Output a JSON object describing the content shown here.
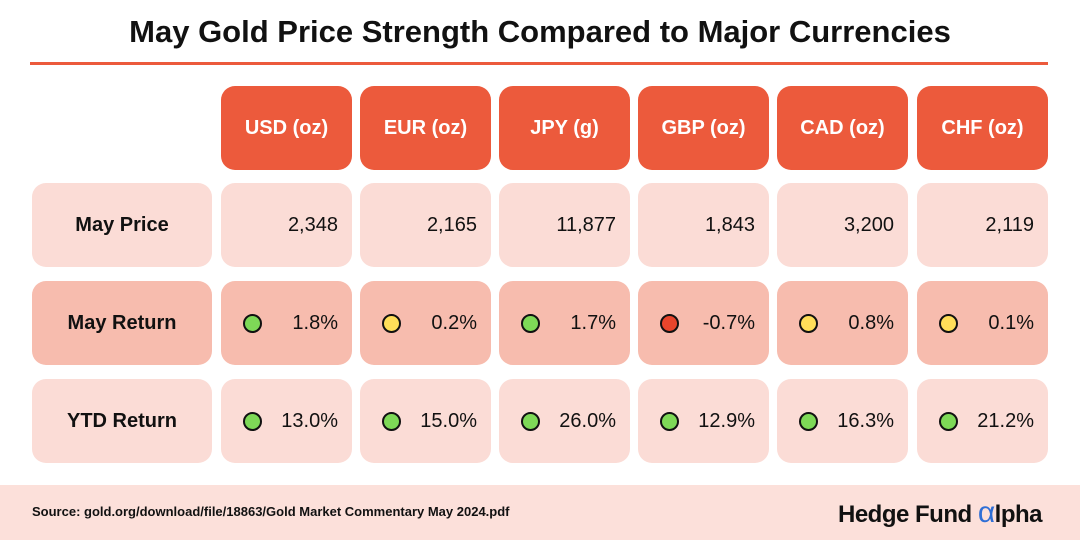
{
  "title": "May Gold Price Strength Compared to Major Currencies",
  "colors": {
    "accent": "#ec5a3c",
    "row_light": "#fbdcd6",
    "row_dark": "#f7bcae",
    "green": "#7ed957",
    "yellow": "#ffde59",
    "red": "#e8452c"
  },
  "chart_data": {
    "type": "table",
    "columns": [
      "USD (oz)",
      "EUR (oz)",
      "JPY (g)",
      "GBP (oz)",
      "CAD (oz)",
      "CHF (oz)"
    ],
    "rows": [
      {
        "label": "May Price",
        "values": [
          "2,348",
          "2,165",
          "11,877",
          "1,843",
          "3,200",
          "2,119"
        ]
      },
      {
        "label": "May Return",
        "values": [
          "1.8%",
          "0.2%",
          "1.7%",
          "-0.7%",
          "0.8%",
          "0.1%"
        ],
        "indicators": [
          "green",
          "yellow",
          "green",
          "red",
          "yellow",
          "yellow"
        ]
      },
      {
        "label": "YTD Return",
        "values": [
          "13.0%",
          "15.0%",
          "26.0%",
          "12.9%",
          "16.3%",
          "21.2%"
        ],
        "indicators": [
          "green",
          "green",
          "green",
          "green",
          "green",
          "green"
        ]
      }
    ]
  },
  "footer": {
    "source": "Source: gold.org/download/file/18863/Gold Market Commentary May 2024.pdf",
    "logo_text": "Hedge Fund ",
    "logo_alpha": "α",
    "logo_tail": "lpha"
  }
}
